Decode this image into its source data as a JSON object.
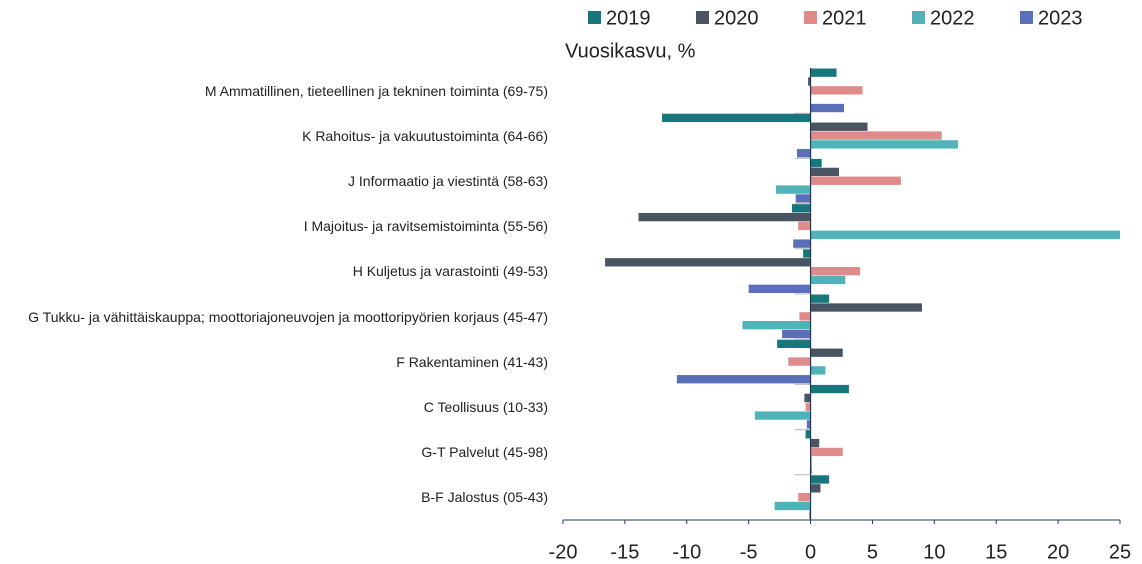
{
  "chart_data": {
    "type": "bar",
    "orientation": "horizontal",
    "title": "Vuosikasvu, %",
    "categories": [
      "M Ammatillinen, tieteellinen ja tekninen toiminta (69-75)",
      "K Rahoitus- ja vakuutustoiminta (64-66)",
      "J Informaatio ja viestintä (58-63)",
      "I Majoitus- ja ravitsemistoiminta (55-56)",
      "H Kuljetus ja varastointi (49-53)",
      "G Tukku- ja vähittäiskauppa; moottoriajoneuvojen ja moottoripyörien korjaus (45-47)",
      "F Rakentaminen (41-43)",
      "C Teollisuus (10-33)",
      "G-T Palvelut (45-98)",
      "B-F Jalostus (05-43)"
    ],
    "series": [
      {
        "name": "2019",
        "color": "#17777d",
        "values": [
          2.1,
          -12,
          0.9,
          -1.5,
          -0.6,
          1.5,
          -2.7,
          3.1,
          -0.4,
          1.5
        ]
      },
      {
        "name": "2020",
        "color": "#4a5563",
        "values": [
          -0.2,
          4.6,
          2.3,
          -13.9,
          -16.6,
          9.0,
          2.6,
          -0.5,
          0.7,
          0.8
        ]
      },
      {
        "name": "2021",
        "color": "#e08b8b",
        "values": [
          4.2,
          10.6,
          7.3,
          -1.0,
          4.0,
          -0.9,
          -1.8,
          -0.4,
          2.6,
          -1.0
        ]
      },
      {
        "name": "2022",
        "color": "#4fb3b8",
        "values": [
          0,
          11.9,
          -2.8,
          25,
          2.8,
          -5.5,
          1.2,
          -4.5,
          0.1,
          -2.9
        ]
      },
      {
        "name": "2023",
        "color": "#5b6fb8",
        "values": [
          2.7,
          -1.1,
          -1.2,
          -1.4,
          -5.0,
          -2.3,
          -10.8,
          -0.3,
          0.1,
          -0.1
        ]
      }
    ],
    "xlim": [
      -20,
      25
    ],
    "xticks": [
      -20,
      -15,
      -10,
      -5,
      0,
      5,
      10,
      15,
      20,
      25
    ],
    "legend": "top"
  }
}
